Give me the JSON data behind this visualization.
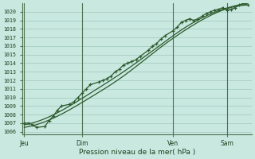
{
  "bg_color": "#c8e8e0",
  "plot_bg": "#c8e8e0",
  "grid_color": "#a0c8bc",
  "line_color": "#2d5a2d",
  "xlabel": "Pression niveau de la mer( hPa )",
  "ylim_min": 1006,
  "ylim_max": 1020.5,
  "yticks": [
    1006,
    1007,
    1008,
    1009,
    1010,
    1011,
    1012,
    1013,
    1014,
    1015,
    1016,
    1017,
    1018,
    1019,
    1020
  ],
  "xtick_labels": [
    "Jeu",
    "Dim",
    "Ven",
    "Sam"
  ],
  "xtick_pos": [
    0,
    14,
    36,
    49
  ],
  "vline_pos": [
    0,
    14,
    36,
    49
  ],
  "jagged_x": [
    0,
    1,
    2,
    3,
    5,
    6,
    7,
    8,
    9,
    11,
    12,
    13,
    14,
    15,
    16,
    18,
    19,
    20,
    21,
    22,
    23,
    24,
    25,
    26,
    27,
    28,
    30,
    31,
    32,
    33,
    34,
    36,
    37,
    38,
    39,
    40,
    41,
    42,
    43,
    44,
    45,
    46,
    47,
    48,
    49,
    50,
    51,
    52,
    53,
    54
  ],
  "jagged_y": [
    1007.0,
    1007.0,
    1006.8,
    1006.5,
    1006.6,
    1007.3,
    1007.8,
    1008.5,
    1009.0,
    1009.2,
    1009.5,
    1010.0,
    1010.5,
    1011.0,
    1011.5,
    1011.8,
    1012.0,
    1012.2,
    1012.5,
    1013.0,
    1013.3,
    1013.8,
    1014.0,
    1014.2,
    1014.4,
    1014.8,
    1015.5,
    1016.0,
    1016.3,
    1016.8,
    1017.2,
    1017.8,
    1018.2,
    1018.8,
    1019.0,
    1019.2,
    1019.0,
    1019.2,
    1019.5,
    1019.8,
    1020.0,
    1020.2,
    1020.3,
    1020.5,
    1020.2,
    1020.3,
    1020.5,
    1020.8,
    1021.0,
    1020.8
  ],
  "smooth1_x": [
    0,
    8,
    16,
    24,
    32,
    40,
    48,
    54
  ],
  "smooth1_y": [
    1006.8,
    1008.2,
    1010.5,
    1013.0,
    1015.8,
    1018.5,
    1020.3,
    1021.0
  ],
  "smooth2_x": [
    0,
    8,
    16,
    24,
    32,
    40,
    48,
    54
  ],
  "smooth2_y": [
    1006.5,
    1007.8,
    1010.0,
    1012.5,
    1015.5,
    1018.2,
    1020.2,
    1020.8
  ]
}
